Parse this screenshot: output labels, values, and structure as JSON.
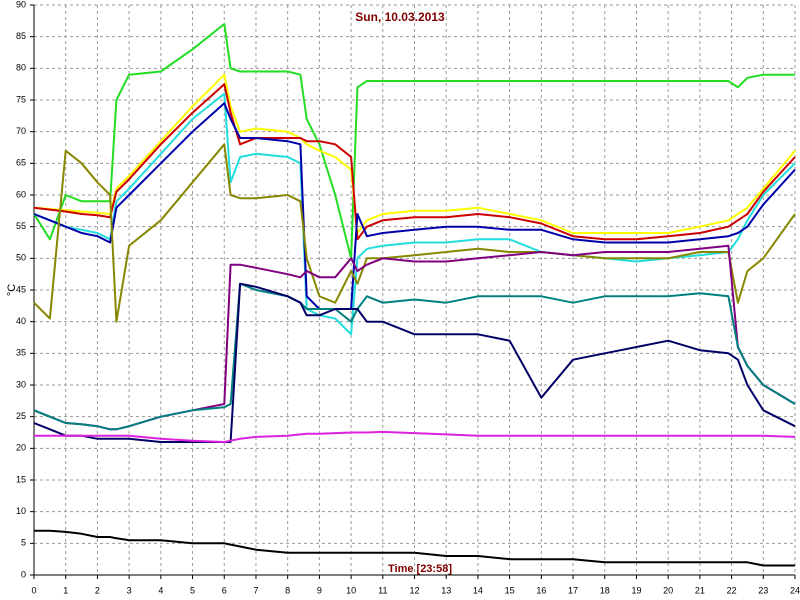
{
  "chart_data": {
    "type": "line",
    "title": "Sun, 10.03.2013",
    "x_label": "Time [23:58]",
    "y_label": "°C",
    "x": [
      0,
      0.5,
      1,
      1.5,
      2,
      2.4,
      2.6,
      3,
      4,
      5,
      6,
      6.2,
      6.5,
      7,
      8,
      8.4,
      8.6,
      9,
      9.5,
      10,
      10.2,
      10.5,
      11,
      12,
      13,
      14,
      15,
      16,
      17,
      18,
      19,
      20,
      21,
      21.9,
      22.2,
      22.5,
      23,
      24
    ],
    "xlim": [
      0,
      24
    ],
    "xticks": [
      0,
      1,
      2,
      3,
      4,
      5,
      6,
      7,
      8,
      9,
      10,
      11,
      12,
      13,
      14,
      15,
      16,
      17,
      18,
      19,
      20,
      21,
      22,
      23,
      24
    ],
    "ylim": [
      0,
      90
    ],
    "yticks": [
      0,
      5,
      10,
      15,
      20,
      25,
      30,
      35,
      40,
      45,
      50,
      55,
      60,
      65,
      70,
      75,
      80,
      85,
      90
    ],
    "grid": true,
    "series": [
      {
        "color": "#22dd22",
        "values": [
          57,
          53,
          60,
          59,
          59,
          59,
          75,
          79,
          79.5,
          83,
          87,
          80,
          79.5,
          79.5,
          79.5,
          79,
          72,
          68,
          60,
          50,
          77,
          78,
          78,
          78,
          78,
          78,
          78,
          78,
          78,
          78,
          78,
          78,
          78,
          78,
          77,
          78.5,
          79,
          79
        ]
      },
      {
        "color": "#ffff00",
        "values": [
          58,
          57.8,
          57.6,
          57.4,
          57.2,
          57,
          61,
          63,
          68.5,
          74,
          79,
          74,
          70,
          70.5,
          70,
          69,
          68,
          67,
          66,
          64,
          54,
          56,
          57,
          57.5,
          57.5,
          58,
          57,
          56,
          54,
          54,
          54,
          54,
          55,
          56,
          57,
          58,
          61,
          67
        ]
      },
      {
        "color": "#cc0000",
        "values": [
          58,
          57.7,
          57.4,
          57,
          56.8,
          56.5,
          60.5,
          62.5,
          68,
          73,
          77.5,
          73,
          68,
          69,
          69,
          69,
          68.5,
          68.5,
          68,
          66,
          53,
          55,
          56,
          56.5,
          56.5,
          57,
          56.5,
          55.5,
          53.5,
          53,
          53,
          53.5,
          54,
          55,
          56,
          57,
          60.5,
          66
        ]
      },
      {
        "color": "#22dddd",
        "values": [
          57,
          56,
          55,
          54.5,
          54,
          53,
          59,
          61,
          66.5,
          72,
          76,
          62,
          66,
          66.5,
          66,
          65,
          42,
          41,
          40.5,
          38,
          50,
          51.5,
          52,
          52.5,
          52.5,
          53,
          53,
          51,
          50.5,
          50,
          49.5,
          50,
          50.5,
          51,
          53,
          56,
          60,
          65
        ]
      },
      {
        "color": "#0000aa",
        "values": [
          57,
          56,
          55,
          54,
          53.5,
          52.5,
          58,
          60,
          65,
          70,
          74.5,
          72,
          69,
          69,
          68.5,
          68,
          44,
          42,
          42,
          42,
          57,
          53.5,
          54,
          54.5,
          55,
          55,
          54.5,
          54.5,
          53,
          52.5,
          52.5,
          52.5,
          53,
          53.5,
          54,
          55,
          58.5,
          64
        ]
      },
      {
        "color": "#888800",
        "values": [
          43,
          40.5,
          67,
          65,
          62,
          60,
          40,
          52,
          56,
          62,
          68,
          60,
          59.5,
          59.5,
          60,
          59,
          50,
          44,
          43,
          48,
          46,
          50,
          50,
          50.5,
          51,
          51.5,
          51,
          51,
          50.5,
          50,
          50,
          50,
          51,
          51,
          43,
          48,
          50,
          57
        ]
      },
      {
        "color": "#800080",
        "values": [
          26,
          25,
          24,
          23.8,
          23.5,
          23,
          23,
          23.5,
          25,
          26,
          27,
          49,
          49,
          48.5,
          47.5,
          47,
          48,
          47,
          47,
          50,
          48,
          49,
          50,
          49.5,
          49.5,
          50,
          50.5,
          51,
          50.5,
          51,
          51,
          51,
          51.5,
          52,
          36,
          33,
          30,
          27
        ]
      },
      {
        "color": "#008080",
        "values": [
          26,
          25,
          24,
          23.8,
          23.5,
          23,
          23,
          23.5,
          25,
          26,
          26.5,
          27,
          46,
          45,
          44,
          43,
          42,
          42,
          42,
          40,
          42,
          44,
          43,
          43.5,
          43,
          44,
          44,
          44,
          43,
          44,
          44,
          44,
          44.5,
          44,
          36,
          33,
          30,
          27
        ]
      },
      {
        "color": "#000066",
        "values": [
          24,
          23,
          22,
          22,
          21.5,
          21.5,
          21.5,
          21.5,
          21,
          21,
          21,
          21,
          46,
          45.5,
          44,
          43,
          41,
          41,
          42,
          42,
          42,
          40,
          40,
          38,
          38,
          38,
          37,
          28,
          34,
          35,
          36,
          37,
          35.5,
          35,
          34,
          30,
          26,
          23.5
        ]
      },
      {
        "color": "#dd22dd",
        "values": [
          22,
          22,
          22,
          22,
          22,
          22,
          22,
          22,
          21.5,
          21.2,
          21,
          21.2,
          21.5,
          21.8,
          22,
          22.2,
          22.3,
          22.3,
          22.4,
          22.5,
          22.5,
          22.5,
          22.6,
          22.4,
          22.2,
          22,
          22,
          22,
          22,
          22,
          22,
          22,
          22,
          22,
          22,
          22,
          22,
          21.8
        ]
      },
      {
        "color": "#000000",
        "values": [
          7,
          7,
          6.8,
          6.5,
          6,
          6,
          5.8,
          5.5,
          5.5,
          5,
          5,
          4.8,
          4.5,
          4,
          3.5,
          3.5,
          3.5,
          3.5,
          3.5,
          3.5,
          3.5,
          3.5,
          3.5,
          3.5,
          3,
          3,
          2.5,
          2.5,
          2.5,
          2,
          2,
          2,
          2,
          2,
          2,
          2,
          1.5,
          1.5
        ]
      }
    ]
  }
}
